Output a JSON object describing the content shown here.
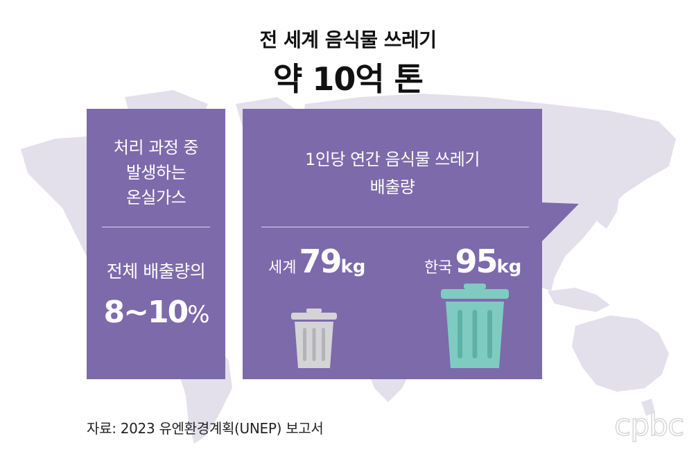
{
  "title": {
    "line1": "전 세계 음식물 쓰레기",
    "line2": "약 10억 톤"
  },
  "left_panel": {
    "heading_line1": "처리 과정 중",
    "heading_line2": "발생하는",
    "heading_line3": "온실가스",
    "sub": "전체 배출량의",
    "value": "8~10",
    "unit": "%"
  },
  "right_panel": {
    "heading_line1": "1인당 연간 음식물 쓰레기",
    "heading_line2": "배출량",
    "world": {
      "label": "세계",
      "value": "79",
      "unit": "kg"
    },
    "korea": {
      "label": "한국",
      "value": "95",
      "unit": "kg"
    }
  },
  "source": "자료: 2023 유엔환경계획(UNEP) 보고서",
  "logo": "cpbc",
  "colors": {
    "panel": "#7c6aab",
    "map": "#e3e0ec",
    "bin_world": "#d4d4d6",
    "bin_korea": "#7fcbc1"
  },
  "icons": [
    "world-map-icon",
    "trash-bin-icon"
  ]
}
